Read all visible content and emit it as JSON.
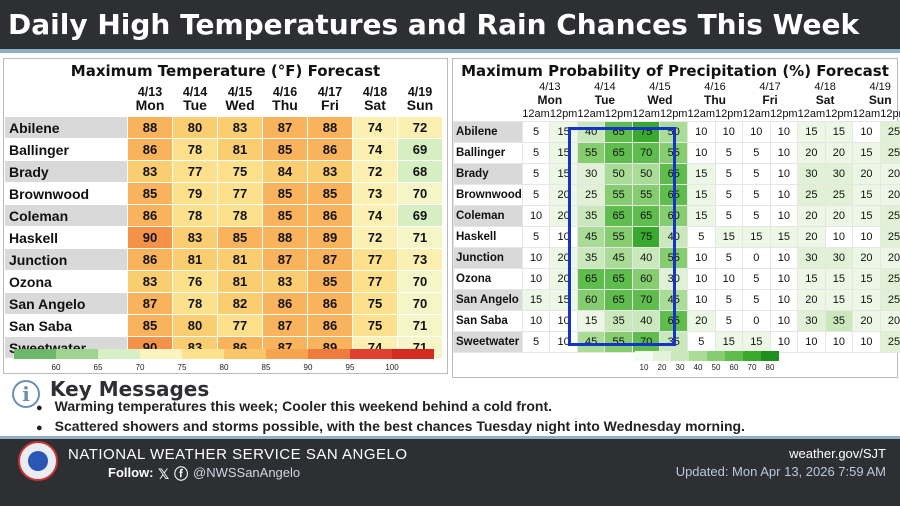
{
  "banner": {
    "title": "Daily High Temperatures and Rain Chances This Week"
  },
  "temp_panel": {
    "title": "Maximum Temperature (°F) Forecast",
    "days": [
      {
        "date": "4/13",
        "dow": "Mon"
      },
      {
        "date": "4/14",
        "dow": "Tue"
      },
      {
        "date": "4/15",
        "dow": "Wed"
      },
      {
        "date": "4/16",
        "dow": "Thu"
      },
      {
        "date": "4/17",
        "dow": "Fri"
      },
      {
        "date": "4/18",
        "dow": "Sat"
      },
      {
        "date": "4/19",
        "dow": "Sun"
      }
    ],
    "rows": [
      {
        "city": "Abilene",
        "values": [
          88,
          80,
          83,
          87,
          88,
          74,
          72
        ]
      },
      {
        "city": "Ballinger",
        "values": [
          86,
          78,
          81,
          85,
          86,
          74,
          69
        ]
      },
      {
        "city": "Brady",
        "values": [
          83,
          77,
          75,
          84,
          83,
          72,
          68
        ]
      },
      {
        "city": "Brownwood",
        "values": [
          85,
          79,
          77,
          85,
          85,
          73,
          70
        ]
      },
      {
        "city": "Coleman",
        "values": [
          86,
          78,
          78,
          85,
          86,
          74,
          69
        ]
      },
      {
        "city": "Haskell",
        "values": [
          90,
          83,
          85,
          88,
          89,
          72,
          71
        ]
      },
      {
        "city": "Junction",
        "values": [
          86,
          81,
          81,
          87,
          87,
          77,
          73
        ]
      },
      {
        "city": "Ozona",
        "values": [
          83,
          76,
          81,
          83,
          85,
          77,
          70
        ]
      },
      {
        "city": "San Angelo",
        "values": [
          87,
          78,
          82,
          86,
          86,
          75,
          70
        ]
      },
      {
        "city": "San Saba",
        "values": [
          85,
          80,
          77,
          87,
          86,
          75,
          71
        ]
      },
      {
        "city": "Sweetwater",
        "values": [
          90,
          83,
          86,
          87,
          89,
          74,
          71
        ]
      }
    ],
    "legend": {
      "labels": [
        "60",
        "65",
        "70",
        "75",
        "80",
        "85",
        "90",
        "95",
        "100"
      ],
      "colors": [
        "#6bb86b",
        "#9fd38f",
        "#d7efc4",
        "#fbf3c0",
        "#fde28e",
        "#fbc66a",
        "#f6a450",
        "#ef7b3c",
        "#e0402f",
        "#d42a1f"
      ]
    }
  },
  "pop_panel": {
    "title": "Maximum Probability of Precipitation (%) Forecast",
    "days": [
      {
        "date": "4/13",
        "dow": "Mon"
      },
      {
        "date": "4/14",
        "dow": "Tue"
      },
      {
        "date": "4/15",
        "dow": "Wed"
      },
      {
        "date": "4/16",
        "dow": "Thu"
      },
      {
        "date": "4/17",
        "dow": "Fri"
      },
      {
        "date": "4/18",
        "dow": "Sat"
      },
      {
        "date": "4/19",
        "dow": "Sun"
      }
    ],
    "periods": [
      "12am",
      "12pm"
    ],
    "rows": [
      {
        "city": "Abilene",
        "values": [
          5,
          15,
          40,
          65,
          75,
          50,
          10,
          10,
          10,
          10,
          15,
          15,
          10,
          25
        ]
      },
      {
        "city": "Ballinger",
        "values": [
          5,
          15,
          55,
          65,
          70,
          55,
          10,
          5,
          5,
          10,
          20,
          20,
          15,
          25
        ]
      },
      {
        "city": "Brady",
        "values": [
          5,
          15,
          30,
          50,
          50,
          65,
          15,
          5,
          5,
          10,
          30,
          30,
          20,
          20
        ]
      },
      {
        "city": "Brownwood",
        "values": [
          5,
          20,
          25,
          55,
          55,
          65,
          15,
          5,
          5,
          10,
          25,
          25,
          15,
          20
        ]
      },
      {
        "city": "Coleman",
        "values": [
          10,
          20,
          35,
          65,
          65,
          60,
          15,
          5,
          5,
          10,
          20,
          20,
          15,
          25
        ]
      },
      {
        "city": "Haskell",
        "values": [
          5,
          10,
          45,
          55,
          75,
          40,
          5,
          15,
          15,
          15,
          20,
          10,
          10,
          25
        ]
      },
      {
        "city": "Junction",
        "values": [
          10,
          20,
          35,
          45,
          40,
          55,
          10,
          5,
          0,
          10,
          30,
          30,
          20,
          20
        ]
      },
      {
        "city": "Ozona",
        "values": [
          10,
          20,
          65,
          65,
          60,
          30,
          10,
          10,
          5,
          10,
          15,
          15,
          15,
          25
        ]
      },
      {
        "city": "San Angelo",
        "values": [
          15,
          15,
          60,
          65,
          70,
          45,
          10,
          5,
          5,
          10,
          20,
          15,
          15,
          25
        ]
      },
      {
        "city": "San Saba",
        "values": [
          10,
          10,
          15,
          35,
          40,
          65,
          20,
          5,
          0,
          10,
          30,
          35,
          20,
          20
        ]
      },
      {
        "city": "Sweetwater",
        "values": [
          5,
          10,
          45,
          55,
          70,
          35,
          5,
          15,
          15,
          10,
          10,
          10,
          10,
          25
        ]
      }
    ],
    "legend": {
      "labels": [
        "10",
        "20",
        "30",
        "40",
        "50",
        "60",
        "70",
        "80"
      ],
      "colors": [
        "#f4fbf0",
        "#e3f3da",
        "#c9e8bb",
        "#a9dc96",
        "#86cd70",
        "#5fbd4d",
        "#3aaa2f",
        "#1f8f1f"
      ]
    }
  },
  "key_messages": {
    "title": "Key Messages",
    "bullets": [
      "Warming temperatures this week; Cooler this weekend behind a cold front.",
      "Scattered showers and storms possible, with the best chances Tuesday night into Wednesday morning."
    ]
  },
  "footer": {
    "office": "NATIONAL WEATHER SERVICE SAN ANGELO",
    "follow_label": "Follow:",
    "social_icons": "𝕏 ⓕ",
    "handle": "@NWSSanAngelo",
    "website": "weather.gov/SJT",
    "updated": "Updated: Mon Apr 13, 2026 7:59 AM"
  },
  "colors": {
    "banner_bg": "#2d2f33",
    "accent_line": "#8fb0c4",
    "highlight_box": "#1433c8"
  }
}
